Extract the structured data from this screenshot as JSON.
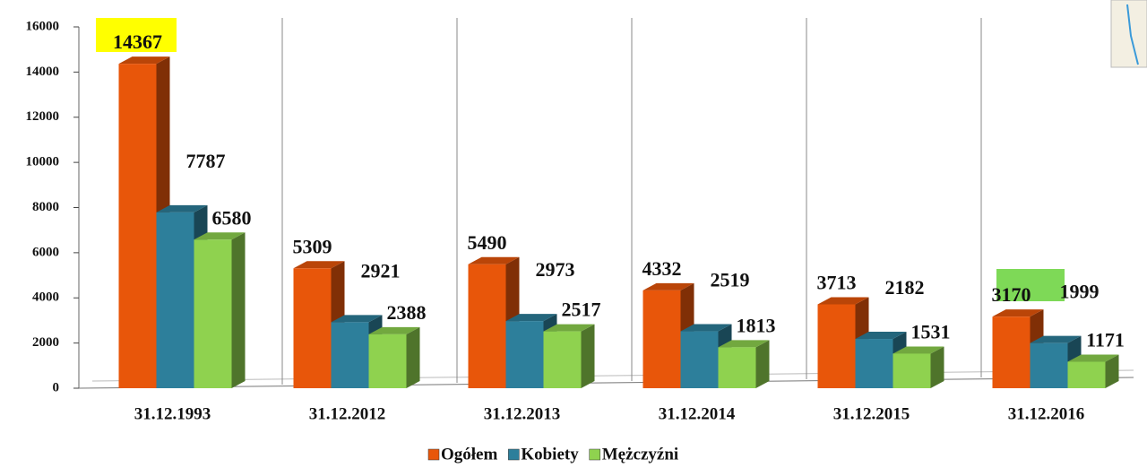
{
  "chart_data": {
    "type": "bar3d",
    "categories": [
      "31.12.1993",
      "31.12.2012",
      "31.12.2013",
      "31.12.2014",
      "31.12.2015",
      "31.12.2016"
    ],
    "series": [
      {
        "name": "Ogółem",
        "color": "#e8560a",
        "values": [
          14367,
          5309,
          5490,
          4332,
          3713,
          3170
        ]
      },
      {
        "name": "Kobiety",
        "color": "#2d7f9b",
        "values": [
          7787,
          2921,
          2973,
          2519,
          2182,
          1999
        ]
      },
      {
        "name": "Mężczyźni",
        "color": "#8fd24f",
        "values": [
          6580,
          2388,
          2517,
          1813,
          1531,
          1171
        ]
      }
    ],
    "ylim": [
      0,
      16000
    ],
    "yticks": [
      0,
      2000,
      4000,
      6000,
      8000,
      10000,
      12000,
      14000,
      16000
    ],
    "legend": "bottom"
  }
}
